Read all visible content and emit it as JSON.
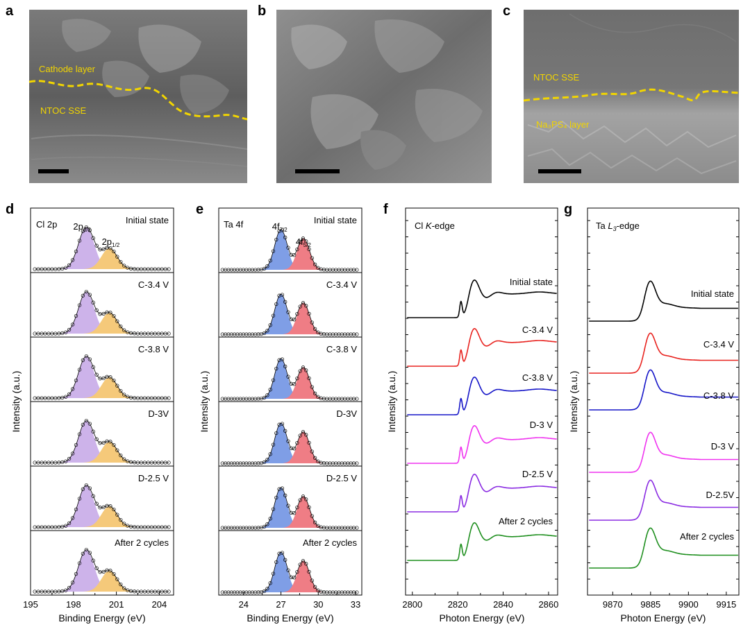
{
  "figure": {
    "panel_letters": [
      "a",
      "b",
      "c",
      "d",
      "e",
      "f",
      "g"
    ]
  },
  "sem": {
    "a": {
      "labels": [
        "Cathode layer",
        "NTOC SSE"
      ]
    },
    "b": {
      "labels": []
    },
    "c": {
      "labels": [
        "NTOC SSE",
        "Na₃PS₄ layer"
      ]
    }
  },
  "colors": {
    "interface_line": "#f2d500",
    "cl_2p32_fill": "#cdb3ea",
    "cl_2p12_fill": "#f5c97a",
    "ta_4f72_fill": "#7f9ee6",
    "ta_4f52_fill": "#ef7d85",
    "curves": [
      "#000000",
      "#e8221e",
      "#1515c8",
      "#ef32ef",
      "#8a2be2",
      "#1f8f1f"
    ]
  },
  "chart_data": [
    {
      "type": "area",
      "panel": "d",
      "title": "Cl 2p",
      "xlabel": "Binding Energy (eV)",
      "ylabel": "Intensity (a.u.)",
      "xlim": [
        195,
        205
      ],
      "xticks": [
        195,
        198,
        201,
        204
      ],
      "xtick_labels": [
        "195",
        "198",
        "201",
        "204"
      ],
      "peak_labels": [
        {
          "main": "2p",
          "sub": "3/2",
          "x": 198.6
        },
        {
          "main": "2p",
          "sub": "1/2",
          "x": 200.6
        }
      ],
      "peaks": [
        {
          "name": "2p3/2",
          "center": 198.9,
          "width": 0.55,
          "height": 1.0
        },
        {
          "name": "2p1/2",
          "center": 200.5,
          "width": 0.55,
          "height": 0.5
        }
      ],
      "series": [
        {
          "name": "Initial state"
        },
        {
          "name": "C-3.4 V"
        },
        {
          "name": "C-3.8 V"
        },
        {
          "name": "D-3V"
        },
        {
          "name": "D-2.5 V"
        },
        {
          "name": "After 2 cycles"
        }
      ]
    },
    {
      "type": "area",
      "panel": "e",
      "title": "Ta 4f",
      "xlabel": "Binding Energy (eV)",
      "ylabel": "Intensity (a.u.)",
      "xlim": [
        22,
        33.5
      ],
      "xticks": [
        24,
        27,
        30,
        33
      ],
      "xtick_labels": [
        "24",
        "27",
        "30",
        "33"
      ],
      "peak_labels": [
        {
          "main": "4f",
          "sub": "7/2",
          "x": 26.9
        },
        {
          "main": "4f",
          "sub": "5/2",
          "x": 28.8
        }
      ],
      "peaks": [
        {
          "name": "4f7/2",
          "center": 27.0,
          "width": 0.5,
          "height": 1.0
        },
        {
          "name": "4f5/2",
          "center": 28.8,
          "width": 0.5,
          "height": 0.78
        }
      ],
      "series": [
        {
          "name": "Initial state"
        },
        {
          "name": "C-3.4 V"
        },
        {
          "name": "C-3.8 V"
        },
        {
          "name": "D-3V"
        },
        {
          "name": "D-2.5 V"
        },
        {
          "name": "After 2 cycles"
        }
      ]
    },
    {
      "type": "line",
      "panel": "f",
      "title_pre": "Cl ",
      "title_em": "K",
      "title_post": "-edge",
      "xlabel": "Photon Energy (eV)",
      "ylabel": "Intensity (a.u.)",
      "xlim": [
        2797,
        2864
      ],
      "xticks": [
        2800,
        2820,
        2840,
        2860
      ],
      "xtick_labels": [
        "2800",
        "2820",
        "2840",
        "2860"
      ],
      "series": [
        {
          "name": "Initial state"
        },
        {
          "name": "C-3.4 V"
        },
        {
          "name": "C-3.8 V"
        },
        {
          "name": "D-3 V"
        },
        {
          "name": "D-2.5 V"
        },
        {
          "name": "After 2 cycles"
        }
      ]
    },
    {
      "type": "line",
      "panel": "g",
      "title_pre": "Ta ",
      "title_em": "L",
      "title_sub": "3",
      "title_post": "-edge",
      "xlabel": "Photon Energy (eV)",
      "ylabel": "Intensity (a.u.)",
      "xlim": [
        9860,
        9920
      ],
      "xticks": [
        9870,
        9885,
        9900,
        9915
      ],
      "xtick_labels": [
        "9870",
        "9885",
        "9900",
        "9915"
      ],
      "series": [
        {
          "name": "Initial state"
        },
        {
          "name": "C-3.4 V"
        },
        {
          "name": "C-3.8 V"
        },
        {
          "name": "D-3 V"
        },
        {
          "name": "D-2.5V"
        },
        {
          "name": "After 2 cycles"
        }
      ]
    }
  ]
}
